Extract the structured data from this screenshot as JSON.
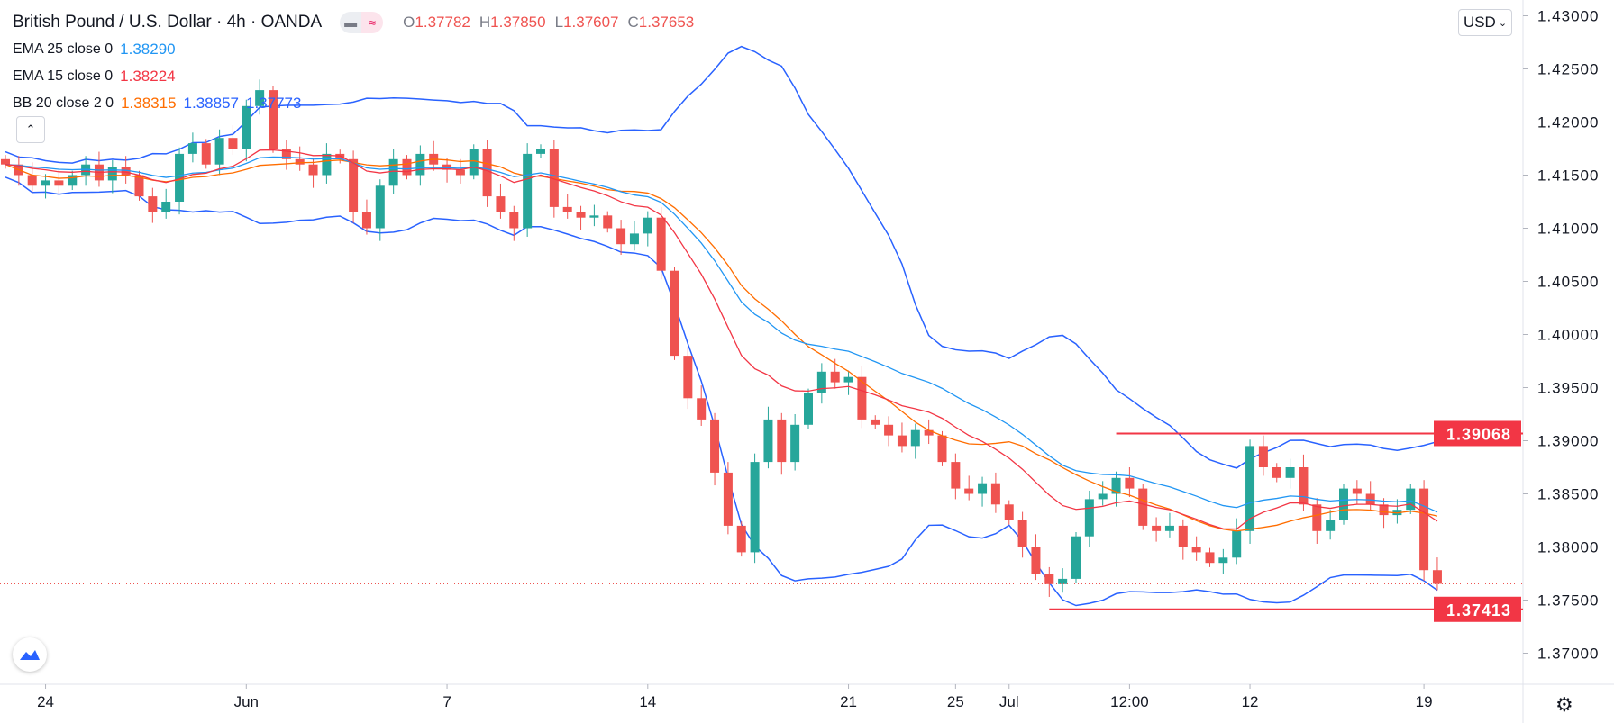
{
  "header": {
    "symbol_title": "British Pound / U.S. Dollar · 4h · OANDA",
    "ohlc": {
      "o_label": "O",
      "o": "1.37782",
      "h_label": "H",
      "h": "1.37850",
      "l_label": "L",
      "l": "1.37607",
      "c_label": "C",
      "c": "1.37653"
    }
  },
  "indicators": [
    {
      "label": "EMA 25 close 0",
      "values": [
        "1.38290"
      ],
      "colors": [
        "#2196f3"
      ]
    },
    {
      "label": "EMA 15 close 0",
      "values": [
        "1.38224"
      ],
      "colors": [
        "#f23645"
      ]
    },
    {
      "label": "BB 20 close 2 0",
      "values": [
        "1.38315",
        "1.38857",
        "1.37773"
      ],
      "colors": [
        "#ff6d00",
        "#2962ff",
        "#2962ff"
      ]
    }
  ],
  "currency_button": "USD",
  "colors": {
    "up": "#26a69a",
    "down": "#ef5350",
    "ema25": "#2196f3",
    "ema15": "#f23645",
    "bb_basis": "#ff6d00",
    "bb_band": "#2962ff",
    "level": "#f23645"
  },
  "chart_data": {
    "type": "candlestick",
    "title": "British Pound / U.S. Dollar · 4h · OANDA",
    "ylim": [
      1.3665,
      1.4305
    ],
    "y_ticks": [
      "1.43000",
      "1.42500",
      "1.42000",
      "1.41500",
      "1.41000",
      "1.40500",
      "1.40000",
      "1.39500",
      "1.39000",
      "1.38500",
      "1.38000",
      "1.37500",
      "1.37000"
    ],
    "x_ticks": [
      {
        "label": "24",
        "index": 3
      },
      {
        "label": "Jun",
        "index": 18
      },
      {
        "label": "7",
        "index": 33
      },
      {
        "label": "14",
        "index": 48
      },
      {
        "label": "21",
        "index": 63
      },
      {
        "label": "25",
        "index": 71
      },
      {
        "label": "Jul",
        "index": 75
      },
      {
        "label": "12:00",
        "index": 84
      },
      {
        "label": "12",
        "index": 93
      },
      {
        "label": "19",
        "index": 106
      }
    ],
    "closes": [
      1.416,
      1.415,
      1.414,
      1.4145,
      1.414,
      1.415,
      1.416,
      1.4145,
      1.4158,
      1.415,
      1.413,
      1.4115,
      1.4125,
      1.417,
      1.418,
      1.416,
      1.4185,
      1.4175,
      1.4215,
      1.423,
      1.4175,
      1.4165,
      1.416,
      1.415,
      1.417,
      1.4165,
      1.4115,
      1.41,
      1.414,
      1.4165,
      1.415,
      1.417,
      1.416,
      1.4155,
      1.415,
      1.4175,
      1.413,
      1.4115,
      1.41,
      1.417,
      1.4175,
      1.412,
      1.4115,
      1.411,
      1.4112,
      1.41,
      1.4085,
      1.4095,
      1.411,
      1.406,
      1.398,
      1.394,
      1.392,
      1.387,
      1.382,
      1.3795,
      1.388,
      1.392,
      1.388,
      1.3915,
      1.3945,
      1.3965,
      1.3955,
      1.396,
      1.392,
      1.3915,
      1.3905,
      1.3895,
      1.391,
      1.3905,
      1.388,
      1.3855,
      1.385,
      1.386,
      1.384,
      1.3825,
      1.38,
      1.3775,
      1.3765,
      1.377,
      1.381,
      1.3845,
      1.385,
      1.3865,
      1.3855,
      1.382,
      1.3815,
      1.382,
      1.38,
      1.3795,
      1.3785,
      1.379,
      1.3815,
      1.3895,
      1.3875,
      1.3865,
      1.3875,
      1.384,
      1.3815,
      1.3825,
      1.3855,
      1.385,
      1.384,
      1.383,
      1.3835,
      1.3855,
      1.37782,
      1.37653
    ],
    "horizontal_levels": [
      {
        "price": 1.39068,
        "label": "1.39068",
        "from_index": 83
      },
      {
        "price": 1.37413,
        "label": "1.37413",
        "from_index": 78
      }
    ],
    "current_price": 1.37653,
    "series": [
      {
        "name": "EMA 25"
      },
      {
        "name": "EMA 15"
      },
      {
        "name": "BB 20 basis"
      },
      {
        "name": "BB 20 upper"
      },
      {
        "name": "BB 20 lower"
      }
    ]
  }
}
